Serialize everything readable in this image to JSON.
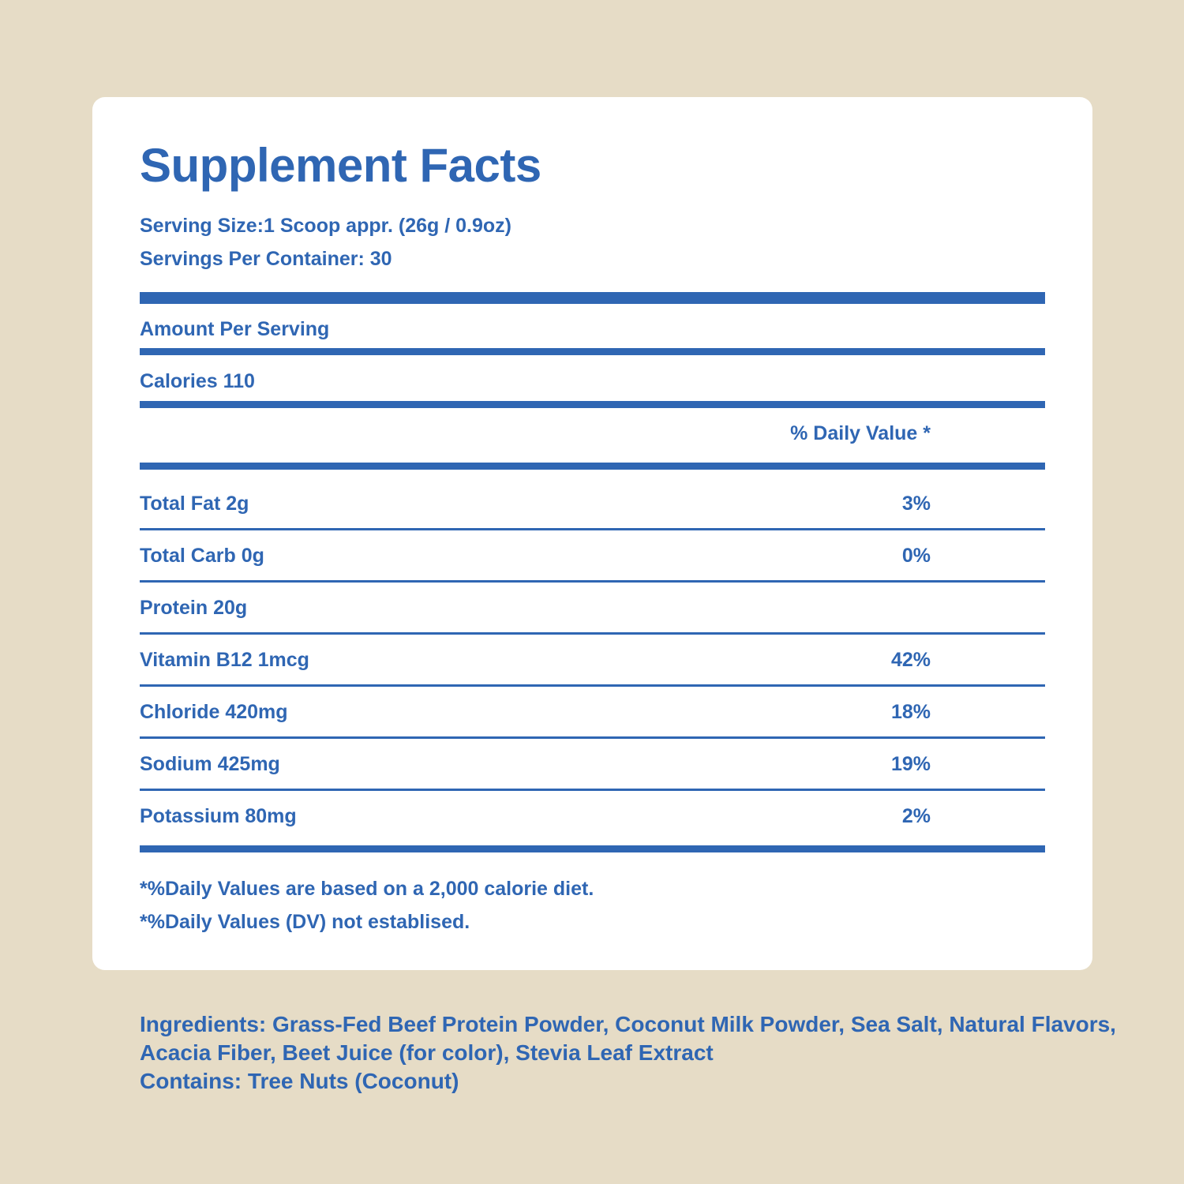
{
  "panel": {
    "title": "Supplement Facts",
    "serving_size": "Serving Size:1 Scoop appr. (26g / 0.9oz)",
    "servings_per_container": "Servings Per Container: 30",
    "amount_per_serving": "Amount Per Serving",
    "calories": "Calories 110",
    "daily_value_header": "% Daily Value *",
    "nutrients": [
      {
        "label": "Total Fat 2g",
        "dv": "3%"
      },
      {
        "label": "Total Carb 0g",
        "dv": "0%"
      },
      {
        "label": "Protein 20g",
        "dv": ""
      },
      {
        "label": "Vitamin B12 1mcg",
        "dv": "42%"
      },
      {
        "label": "Chloride 420mg",
        "dv": "18%"
      },
      {
        "label": "Sodium 425mg",
        "dv": "19%"
      },
      {
        "label": "Potassium 80mg",
        "dv": "2%"
      }
    ],
    "footnotes": [
      "*%Daily Values are based on a 2,000 calorie diet.",
      "*%Daily Values (DV) not establised."
    ]
  },
  "ingredients": {
    "line1": "Ingredients: Grass-Fed Beef Protein Powder, Coconut Milk Powder, Sea Salt, Natural Flavors,",
    "line2": "Acacia Fiber, Beet Juice (for color), Stevia Leaf Extract",
    "contains": "Contains: Tree Nuts (Coconut)"
  },
  "colors": {
    "background": "#e6dcc6",
    "panel": "#ffffff",
    "text": "#2f66b3"
  }
}
